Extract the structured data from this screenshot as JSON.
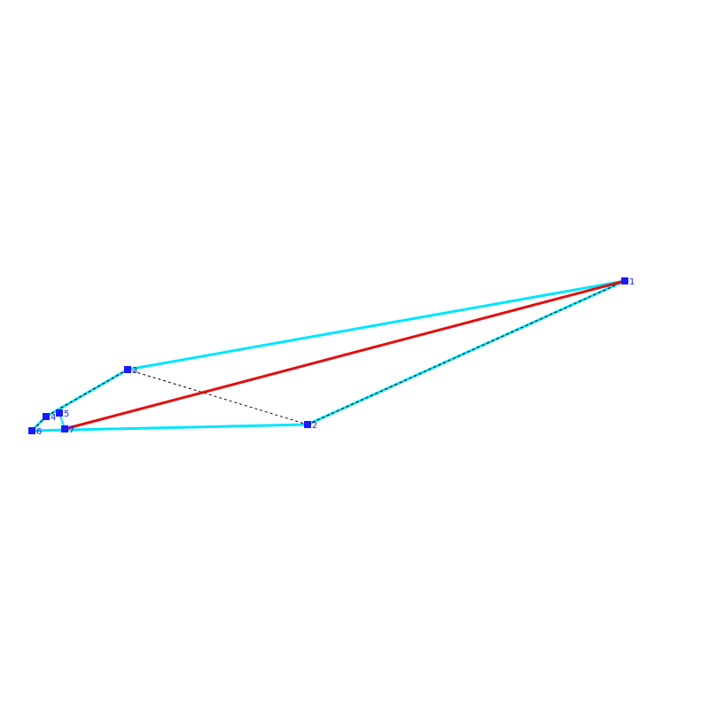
{
  "nodes": [
    {
      "label": "1"
    },
    {
      "label": "2"
    },
    {
      "label": "3"
    },
    {
      "label": "4"
    },
    {
      "label": "5"
    },
    {
      "label": "6"
    },
    {
      "label": "7"
    }
  ]
}
